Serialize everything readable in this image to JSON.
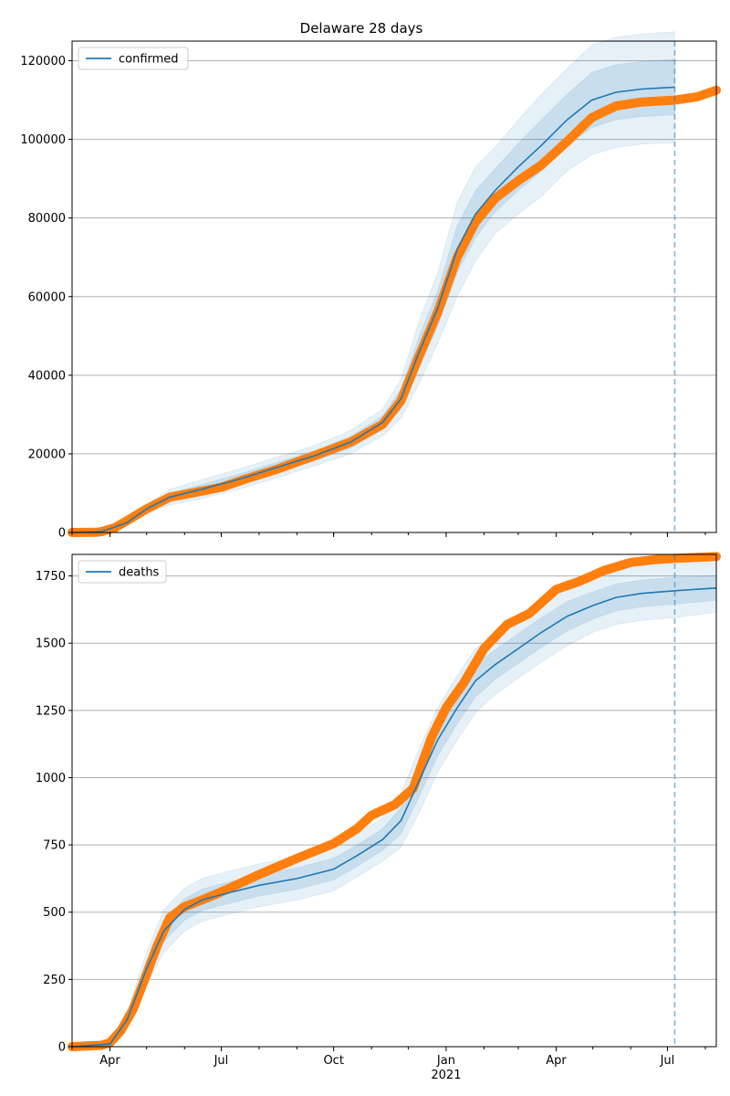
{
  "figure": {
    "title": "Delaware 28 days"
  },
  "colors": {
    "model": "#1f77b4",
    "observed": "#ff7f0e",
    "grid": "#b0b0b0",
    "band": "#1f77b4"
  },
  "chart_data": [
    {
      "type": "line",
      "name": "confirmed-panel",
      "legend": {
        "label": "confirmed",
        "placement": "top-left"
      },
      "xlim": [
        "2020-03-01",
        "2021-08-10"
      ],
      "ylim": [
        0,
        125000
      ],
      "yticks": [
        0,
        20000,
        40000,
        60000,
        80000,
        100000,
        120000
      ],
      "ytick_labels": [
        "0",
        "20000",
        "40000",
        "60000",
        "80000",
        "100000",
        "120000"
      ],
      "xticks": [],
      "forecast_date": "2021-07-07",
      "grid": "horizontal",
      "model_series": {
        "x": [
          "2020-03-01",
          "2020-03-25",
          "2020-04-15",
          "2020-05-01",
          "2020-05-20",
          "2020-06-15",
          "2020-07-15",
          "2020-08-15",
          "2020-09-15",
          "2020-10-15",
          "2020-11-10",
          "2020-11-25",
          "2020-12-10",
          "2020-12-25",
          "2021-01-10",
          "2021-01-25",
          "2021-02-10",
          "2021-03-01",
          "2021-03-20",
          "2021-04-10",
          "2021-04-30",
          "2021-05-20",
          "2021-06-10",
          "2021-07-07"
        ],
        "values": [
          0,
          200,
          2500,
          6000,
          9000,
          11000,
          13500,
          16500,
          19500,
          23000,
          28000,
          34000,
          46000,
          57000,
          72000,
          81000,
          87000,
          93000,
          98500,
          105000,
          110000,
          112000,
          112800,
          113300
        ],
        "bands": [
          {
            "lower": [
              0,
              150,
              2200,
              5400,
              8000,
              9800,
              12200,
              15200,
              18200,
              21500,
              26300,
              31500,
              42000,
              52500,
              66000,
              75000,
              81500,
              87000,
              92000,
              98500,
              103000,
              105000,
              105800,
              106200
            ],
            "upper": [
              0,
              250,
              2800,
              6600,
              10000,
              12200,
              14800,
              17800,
              20800,
              24500,
              29700,
              36500,
              50000,
              61500,
              78000,
              87000,
              92500,
              99000,
              105000,
              111500,
              117000,
              119000,
              119800,
              120400
            ]
          },
          {
            "lower": [
              0,
              100,
              1900,
              4800,
              7000,
              8600,
              10900,
              13900,
              16900,
              20000,
              24600,
              29000,
              38000,
              48000,
              60000,
              69000,
              76000,
              81000,
              85500,
              92000,
              96000,
              98000,
              98800,
              99200
            ],
            "upper": [
              0,
              300,
              3100,
              7200,
              11000,
              13400,
              16100,
              19100,
              22100,
              26000,
              31400,
              39000,
              54000,
              66000,
              84000,
              93000,
              98000,
              105000,
              111500,
              118000,
              124000,
              126000,
              126800,
              127400
            ]
          }
        ]
      },
      "observed_series": {
        "x": [
          "2020-03-01",
          "2020-03-20",
          "2020-03-25",
          "2020-04-05",
          "2020-04-15",
          "2020-05-01",
          "2020-05-20",
          "2020-06-10",
          "2020-07-01",
          "2020-07-20",
          "2020-08-15",
          "2020-09-15",
          "2020-10-15",
          "2020-11-10",
          "2020-11-25",
          "2020-12-10",
          "2020-12-25",
          "2021-01-10",
          "2021-01-25",
          "2021-02-10",
          "2021-03-01",
          "2021-03-20",
          "2021-04-10",
          "2021-04-30",
          "2021-05-20",
          "2021-06-10",
          "2021-07-07",
          "2021-07-25",
          "2021-08-10"
        ],
        "values": [
          0,
          50,
          200,
          1200,
          3000,
          6000,
          9000,
          10200,
          11500,
          13500,
          16000,
          19500,
          23000,
          27500,
          33500,
          45000,
          56000,
          70000,
          79000,
          85000,
          89500,
          93500,
          99500,
          105500,
          108500,
          109500,
          110000,
          110800,
          112500
        ]
      }
    },
    {
      "type": "line",
      "name": "deaths-panel",
      "legend": {
        "label": "deaths",
        "placement": "top-left"
      },
      "xlim": [
        "2020-03-01",
        "2021-08-10"
      ],
      "ylim": [
        0,
        1830
      ],
      "yticks": [
        0,
        250,
        500,
        750,
        1000,
        1250,
        1500,
        1750
      ],
      "ytick_labels": [
        "0",
        "250",
        "500",
        "750",
        "1000",
        "1250",
        "1500",
        "1750"
      ],
      "xticks": [
        {
          "date": "2020-04-01",
          "label": "Apr",
          "sub": ""
        },
        {
          "date": "2020-07-01",
          "label": "Jul",
          "sub": ""
        },
        {
          "date": "2020-10-01",
          "label": "Oct",
          "sub": ""
        },
        {
          "date": "2021-01-01",
          "label": "Jan",
          "sub": "2021"
        },
        {
          "date": "2021-04-01",
          "label": "Apr",
          "sub": ""
        },
        {
          "date": "2021-07-01",
          "label": "Jul",
          "sub": ""
        }
      ],
      "forecast_date": "2021-07-07",
      "grid": "horizontal",
      "model_series": {
        "x": [
          "2020-03-01",
          "2020-04-01",
          "2020-04-15",
          "2020-05-01",
          "2020-05-15",
          "2020-06-01",
          "2020-06-15",
          "2020-07-01",
          "2020-08-01",
          "2020-09-01",
          "2020-10-01",
          "2020-10-20",
          "2020-11-10",
          "2020-11-25",
          "2020-12-10",
          "2020-12-25",
          "2021-01-10",
          "2021-01-25",
          "2021-02-10",
          "2021-03-01",
          "2021-03-20",
          "2021-04-10",
          "2021-05-01",
          "2021-05-20",
          "2021-06-10",
          "2021-07-07",
          "2021-08-10"
        ],
        "values": [
          0,
          10,
          100,
          290,
          430,
          510,
          545,
          565,
          600,
          625,
          660,
          710,
          770,
          840,
          990,
          1140,
          1260,
          1360,
          1420,
          1480,
          1540,
          1600,
          1640,
          1670,
          1685,
          1695,
          1705
        ],
        "bands": [
          {
            "lower": [
              0,
              8,
              85,
              260,
              390,
              470,
              505,
              525,
              560,
              585,
              620,
              670,
              730,
              790,
              930,
              1080,
              1200,
              1300,
              1365,
              1425,
              1485,
              1545,
              1590,
              1620,
              1635,
              1645,
              1660
            ],
            "upper": [
              0,
              12,
              115,
              320,
              470,
              550,
              585,
              605,
              640,
              665,
              700,
              750,
              810,
              890,
              1050,
              1200,
              1320,
              1420,
              1475,
              1535,
              1595,
              1655,
              1690,
              1720,
              1735,
              1745,
              1750
            ]
          },
          {
            "lower": [
              0,
              6,
              70,
              230,
              350,
              430,
              465,
              485,
              520,
              545,
              580,
              630,
              690,
              740,
              870,
              1020,
              1140,
              1240,
              1310,
              1370,
              1430,
              1490,
              1540,
              1570,
              1585,
              1595,
              1615
            ],
            "upper": [
              0,
              14,
              130,
              350,
              510,
              590,
              625,
              645,
              680,
              705,
              740,
              790,
              850,
              940,
              1110,
              1260,
              1380,
              1480,
              1530,
              1590,
              1650,
              1710,
              1740,
              1770,
              1785,
              1795,
              1800
            ]
          }
        ]
      },
      "observed_series": {
        "x": [
          "2020-03-01",
          "2020-03-25",
          "2020-04-01",
          "2020-04-10",
          "2020-04-20",
          "2020-05-01",
          "2020-05-10",
          "2020-05-20",
          "2020-06-01",
          "2020-06-15",
          "2020-07-01",
          "2020-08-01",
          "2020-09-01",
          "2020-10-01",
          "2020-10-20",
          "2020-11-01",
          "2020-11-20",
          "2020-12-05",
          "2020-12-20",
          "2021-01-01",
          "2021-01-15",
          "2021-02-01",
          "2021-02-20",
          "2021-03-10",
          "2021-04-01",
          "2021-04-20",
          "2021-05-10",
          "2021-06-01",
          "2021-06-20",
          "2021-07-07",
          "2021-08-10"
        ],
        "values": [
          0,
          5,
          15,
          60,
          140,
          270,
          380,
          480,
          520,
          545,
          575,
          640,
          700,
          755,
          810,
          860,
          900,
          960,
          1150,
          1260,
          1350,
          1480,
          1570,
          1610,
          1700,
          1730,
          1770,
          1800,
          1810,
          1815,
          1822
        ]
      }
    }
  ]
}
